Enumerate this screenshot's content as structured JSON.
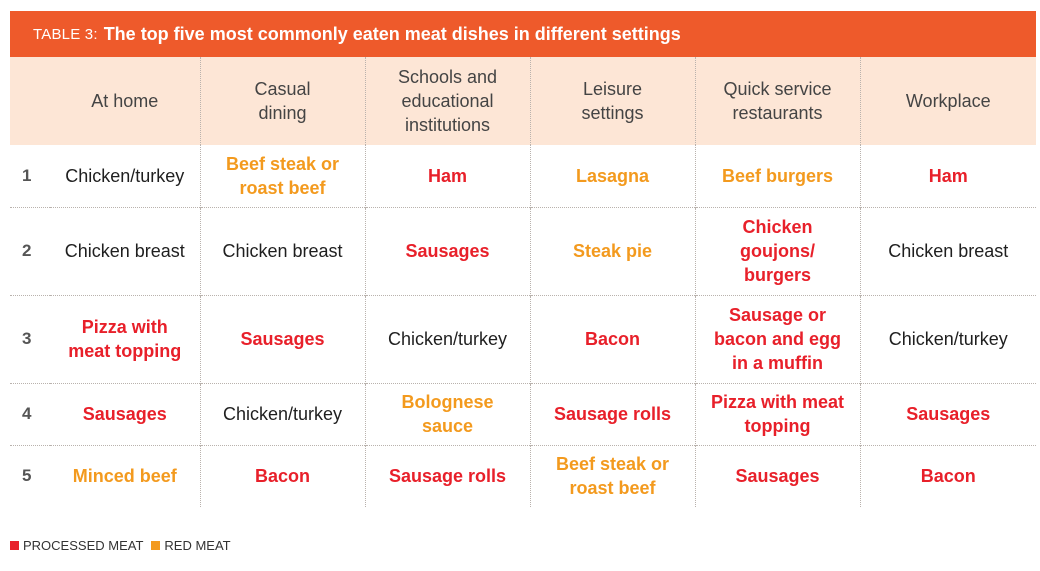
{
  "title": {
    "prefix": "TABLE 3:",
    "text": "The top five most commonly eaten meat dishes in different settings"
  },
  "colors": {
    "title_bar": "#ee5a2b",
    "header_bg": "#fde6d6",
    "processed_meat": "#e8202a",
    "red_meat": "#f39a1e"
  },
  "columns": [
    "At home",
    "Casual dining",
    "Schools and educational institutions",
    "Leisure settings",
    "Quick service restaurants",
    "Workplace"
  ],
  "rows": [
    {
      "rank": "1",
      "cells": [
        {
          "text": "Chicken/turkey",
          "type": "plain"
        },
        {
          "text": "Beef steak or roast beef",
          "type": "red"
        },
        {
          "text": "Ham",
          "type": "processed"
        },
        {
          "text": "Lasagna",
          "type": "red"
        },
        {
          "text": "Beef burgers",
          "type": "red"
        },
        {
          "text": "Ham",
          "type": "processed"
        }
      ]
    },
    {
      "rank": "2",
      "cells": [
        {
          "text": "Chicken breast",
          "type": "plain"
        },
        {
          "text": "Chicken breast",
          "type": "plain"
        },
        {
          "text": "Sausages",
          "type": "processed"
        },
        {
          "text": "Steak pie",
          "type": "red"
        },
        {
          "text": "Chicken goujons/ burgers",
          "type": "processed"
        },
        {
          "text": "Chicken breast",
          "type": "plain"
        }
      ]
    },
    {
      "rank": "3",
      "cells": [
        {
          "text": "Pizza with meat topping",
          "type": "processed"
        },
        {
          "text": "Sausages",
          "type": "processed"
        },
        {
          "text": "Chicken/turkey",
          "type": "plain"
        },
        {
          "text": "Bacon",
          "type": "processed"
        },
        {
          "text": "Sausage or bacon and egg in a muffin",
          "type": "processed"
        },
        {
          "text": "Chicken/turkey",
          "type": "plain"
        }
      ]
    },
    {
      "rank": "4",
      "cells": [
        {
          "text": "Sausages",
          "type": "processed"
        },
        {
          "text": "Chicken/turkey",
          "type": "plain"
        },
        {
          "text": "Bolognese sauce",
          "type": "red"
        },
        {
          "text": "Sausage rolls",
          "type": "processed"
        },
        {
          "text": "Pizza with meat topping",
          "type": "processed"
        },
        {
          "text": "Sausages",
          "type": "processed"
        }
      ]
    },
    {
      "rank": "5",
      "cells": [
        {
          "text": "Minced beef",
          "type": "red"
        },
        {
          "text": "Bacon",
          "type": "processed"
        },
        {
          "text": "Sausage rolls",
          "type": "processed"
        },
        {
          "text": "Beef steak or roast beef",
          "type": "red"
        },
        {
          "text": "Sausages",
          "type": "processed"
        },
        {
          "text": "Bacon",
          "type": "processed"
        }
      ]
    }
  ],
  "legend": {
    "processed_label": "PROCESSED MEAT",
    "red_label": "RED MEAT"
  }
}
